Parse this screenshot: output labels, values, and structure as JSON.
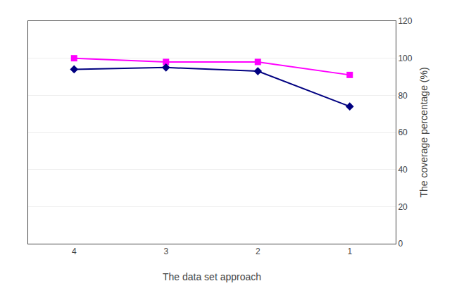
{
  "chart_data": {
    "type": "line",
    "xlabel": "The data set approach",
    "ylabel": "The coverage percentage (%)",
    "x": [
      4,
      3,
      2,
      1
    ],
    "series": [
      {
        "color": "#FF00FF",
        "marker": "square",
        "values": [
          100,
          98,
          98,
          91
        ]
      },
      {
        "color": "#000080",
        "marker": "diamond",
        "values": [
          94,
          95,
          93,
          74
        ]
      }
    ],
    "xlim": [
      4.5,
      0.5
    ],
    "xticks": [
      4,
      3,
      2,
      1
    ],
    "ylim": [
      0,
      120
    ],
    "yticks": [
      0,
      20,
      40,
      60,
      80,
      100,
      120
    ],
    "grid": "y"
  }
}
